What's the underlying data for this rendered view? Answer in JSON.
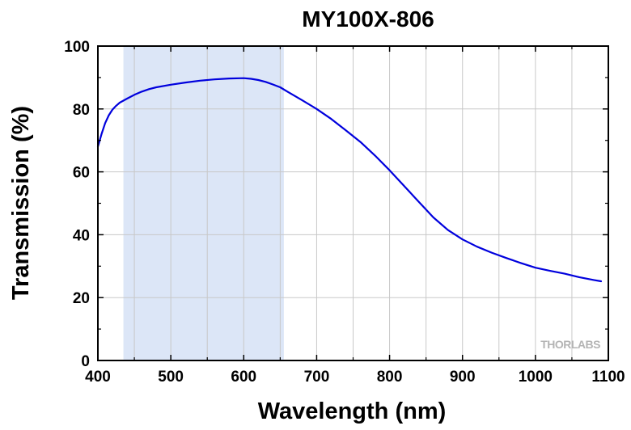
{
  "chart_data": {
    "type": "line",
    "title": "MY100X-806",
    "xlabel": "Wavelength (nm)",
    "ylabel": "Transmission (%)",
    "xlim": [
      400,
      1100
    ],
    "ylim": [
      0,
      100
    ],
    "xticks": [
      400,
      500,
      600,
      700,
      800,
      900,
      1000,
      1100
    ],
    "yticks": [
      0,
      20,
      40,
      60,
      80,
      100
    ],
    "grid": true,
    "highlight_band": {
      "x": [
        435,
        655
      ],
      "color": "#dce6f7"
    },
    "watermark": "THORLABS",
    "series": [
      {
        "color": "#0000dd",
        "x": [
          400,
          405,
          410,
          415,
          420,
          425,
          430,
          440,
          450,
          460,
          470,
          480,
          500,
          520,
          540,
          560,
          580,
          600,
          610,
          620,
          630,
          640,
          650,
          660,
          680,
          700,
          720,
          740,
          760,
          780,
          800,
          820,
          840,
          860,
          880,
          900,
          920,
          940,
          960,
          980,
          1000,
          1020,
          1040,
          1060,
          1080,
          1090
        ],
        "y": [
          68,
          72,
          75.5,
          78,
          79.8,
          81,
          82,
          83.3,
          84.5,
          85.5,
          86.3,
          86.9,
          87.7,
          88.4,
          89,
          89.4,
          89.7,
          89.8,
          89.6,
          89.2,
          88.6,
          87.8,
          86.9,
          85.5,
          82.8,
          80,
          76.8,
          73.2,
          69.5,
          65.2,
          60.5,
          55.5,
          50.5,
          45.5,
          41.5,
          38.5,
          36.2,
          34.3,
          32.6,
          31,
          29.5,
          28.5,
          27.6,
          26.5,
          25.6,
          25.2
        ]
      }
    ],
    "colors": {
      "axis": "#000000",
      "grid": "#c8c8c8",
      "line": "#0000dd",
      "band": "#dce6f7",
      "watermark": "#b4b4b4"
    }
  }
}
